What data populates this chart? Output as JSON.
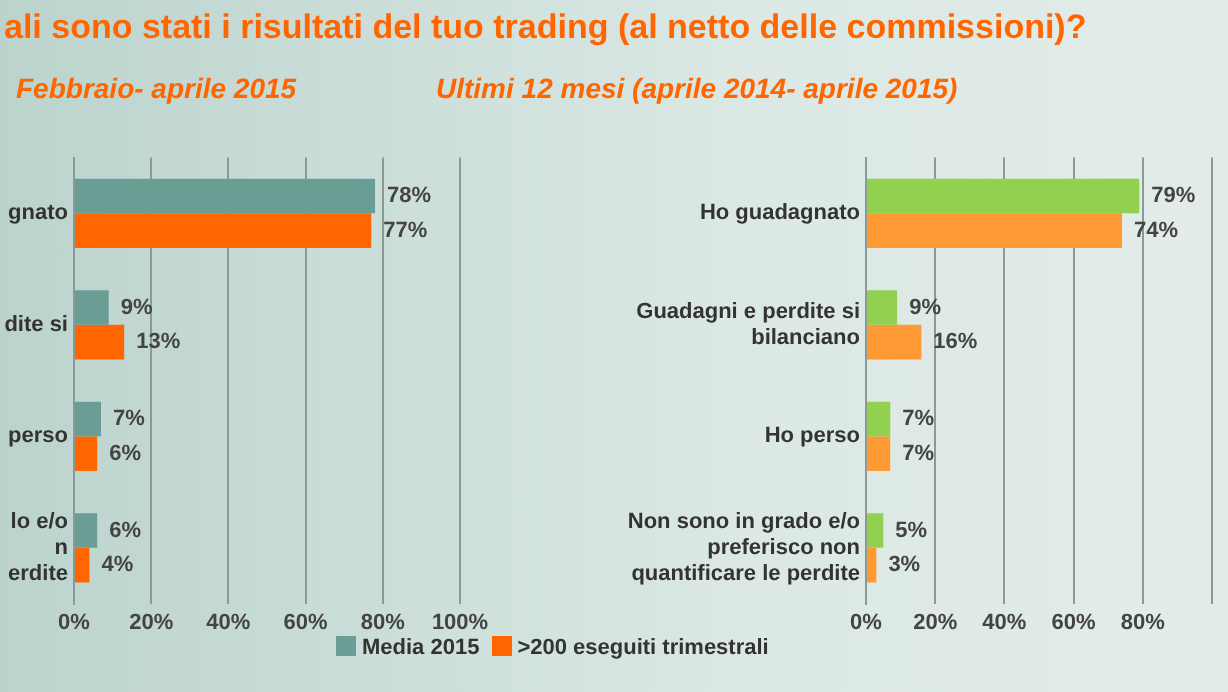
{
  "chart_data": [
    {
      "type": "bar",
      "orientation": "horizontal",
      "title": "ali sono stati i risultati del tuo trading (al netto delle commissioni)?",
      "subtitle": "Febbraio- aprile 2015",
      "categories": [
        "gnato",
        "dite si",
        "perso",
        "lo e/o\nn\nerdite"
      ],
      "series": [
        {
          "name": "Media 2015",
          "color": "#6a9e94",
          "values": [
            78,
            9,
            7,
            6
          ],
          "value_labels": [
            "78%",
            "9%",
            "7%",
            "6%"
          ]
        },
        {
          "name": ">200 eseguiti trimestrali",
          "color": "#ff6600",
          "values": [
            77,
            13,
            6,
            4
          ],
          "value_labels": [
            "77%",
            "13%",
            "6%",
            "4%"
          ]
        }
      ],
      "xlim": [
        0,
        100
      ],
      "xticks": [
        {
          "value": 0,
          "label": "0%"
        },
        {
          "value": 20,
          "label": "20%"
        },
        {
          "value": 40,
          "label": "40%"
        },
        {
          "value": 60,
          "label": "60%"
        },
        {
          "value": 80,
          "label": "80%"
        },
        {
          "value": 100,
          "label": "100%"
        }
      ],
      "grid": "x",
      "legend": "bottom"
    },
    {
      "type": "bar",
      "orientation": "horizontal",
      "subtitle": "Ultimi 12 mesi (aprile 2014- aprile 2015)",
      "categories": [
        "Ho guadagnato",
        "Guadagni e perdite si\nbilanciano",
        "Ho perso",
        "Non sono in grado e/o\npreferisco non\nquantificare le perdite"
      ],
      "series": [
        {
          "color": "#92d050",
          "values": [
            79,
            9,
            7,
            5
          ],
          "value_labels": [
            "79%",
            "9%",
            "7%",
            "5%"
          ]
        },
        {
          "color": "#ff9933",
          "values": [
            74,
            16,
            7,
            3
          ],
          "value_labels": [
            "74%",
            "16%",
            "7%",
            "3%"
          ]
        }
      ],
      "xlim": [
        0,
        100
      ],
      "xticks": [
        {
          "value": 0,
          "label": "0%"
        },
        {
          "value": 20,
          "label": "20%"
        },
        {
          "value": 40,
          "label": "40%"
        },
        {
          "value": 60,
          "label": "60%"
        },
        {
          "value": 80,
          "label": "80%"
        },
        {
          "value": 100,
          "label": null
        }
      ],
      "grid": "x"
    }
  ]
}
